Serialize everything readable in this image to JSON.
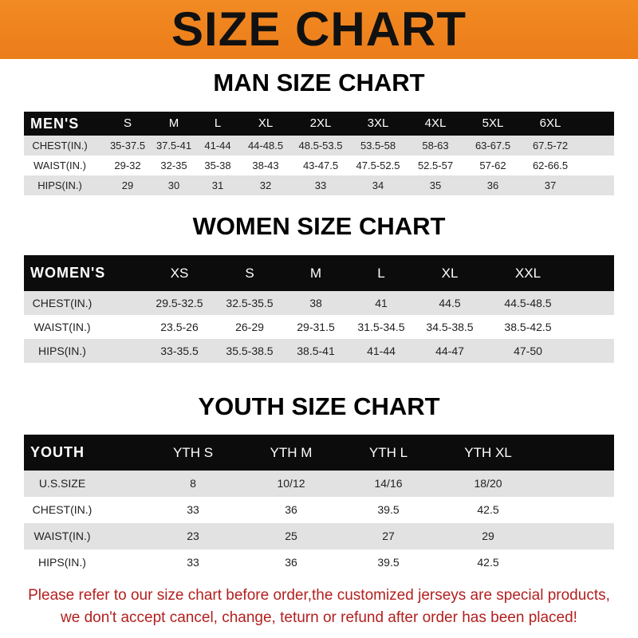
{
  "title": "SIZE CHART",
  "colors": {
    "banner": "#f08420",
    "header_row": "#0c0c0c",
    "stripe": "#e2e2e2",
    "note": "#b3201f"
  },
  "men": {
    "title": "MAN SIZE CHART",
    "header": [
      "MEN'S",
      "S",
      "M",
      "L",
      "XL",
      "2XL",
      "3XL",
      "4XL",
      "5XL",
      "6XL"
    ],
    "rows": [
      [
        "CHEST(IN.)",
        "35-37.5",
        "37.5-41",
        "41-44",
        "44-48.5",
        "48.5-53.5",
        "53.5-58",
        "58-63",
        "63-67.5",
        "67.5-72"
      ],
      [
        "WAIST(IN.)",
        "29-32",
        "32-35",
        "35-38",
        "38-43",
        "43-47.5",
        "47.5-52.5",
        "52.5-57",
        "57-62",
        "62-66.5"
      ],
      [
        "HIPS(IN.)",
        "29",
        "30",
        "31",
        "32",
        "33",
        "34",
        "35",
        "36",
        "37"
      ]
    ]
  },
  "women": {
    "title": "WOMEN SIZE CHART",
    "header": [
      "WOMEN'S",
      "XS",
      "S",
      "M",
      "L",
      "XL",
      "XXL"
    ],
    "rows": [
      [
        "CHEST(IN.)",
        "29.5-32.5",
        "32.5-35.5",
        "38",
        "41",
        "44.5",
        "44.5-48.5"
      ],
      [
        "WAIST(IN.)",
        "23.5-26",
        "26-29",
        "29-31.5",
        "31.5-34.5",
        "34.5-38.5",
        "38.5-42.5"
      ],
      [
        "HIPS(IN.)",
        "33-35.5",
        "35.5-38.5",
        "38.5-41",
        "41-44",
        "44-47",
        "47-50"
      ]
    ]
  },
  "youth": {
    "title": "YOUTH SIZE CHART",
    "header": [
      "YOUTH",
      "YTH S",
      "YTH M",
      "YTH L",
      "YTH XL"
    ],
    "rows": [
      [
        "U.S.SIZE",
        "8",
        "10/12",
        "14/16",
        "18/20"
      ],
      [
        "CHEST(IN.)",
        "33",
        "36",
        "39.5",
        "42.5"
      ],
      [
        "WAIST(IN.)",
        "23",
        "25",
        "27",
        "29"
      ],
      [
        "HIPS(IN.)",
        "33",
        "36",
        "39.5",
        "42.5"
      ]
    ]
  },
  "note": {
    "line1": "Please refer to our size chart before order,the customized jerseys are special products,",
    "line2": "we don't accept cancel, change, teturn or refund after order has been placed!"
  }
}
